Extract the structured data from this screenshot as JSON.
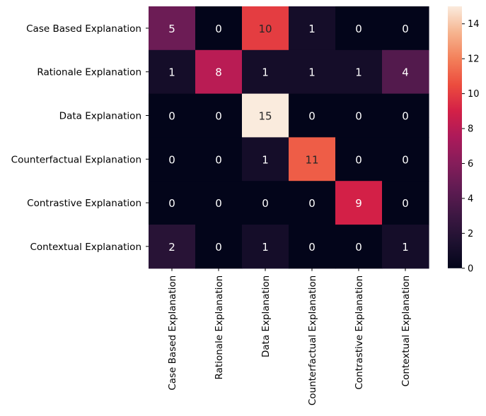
{
  "chart_data": {
    "type": "heatmap",
    "rows": [
      "Case Based Explanation",
      "Rationale Explanation",
      "Data Explanation",
      "Counterfactual Explanation",
      "Contrastive Explanation",
      "Contextual Explanation"
    ],
    "columns": [
      "Case Based Explanation",
      "Rationale Explanation",
      "Data Explanation",
      "Counterfactual Explanation",
      "Contrastive Explanation",
      "Contextual Explanation"
    ],
    "values": [
      [
        5,
        0,
        10,
        1,
        0,
        0
      ],
      [
        1,
        8,
        1,
        1,
        1,
        4
      ],
      [
        0,
        0,
        15,
        0,
        0,
        0
      ],
      [
        0,
        0,
        1,
        11,
        0,
        0
      ],
      [
        0,
        0,
        0,
        0,
        9,
        0
      ],
      [
        2,
        0,
        1,
        0,
        0,
        1
      ]
    ],
    "colorbar": {
      "min": 0,
      "max": 15,
      "ticks": [
        0,
        2,
        4,
        6,
        8,
        10,
        12,
        14
      ]
    },
    "colormap": "rocket",
    "annotations": true,
    "title": "",
    "xlabel": "",
    "ylabel": ""
  }
}
